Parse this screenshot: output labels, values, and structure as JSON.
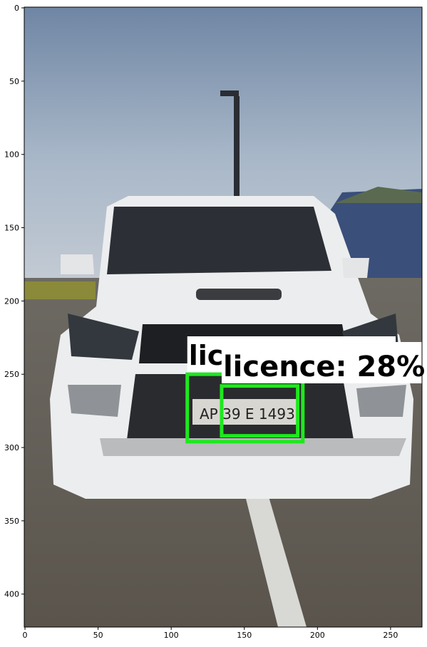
{
  "image": {
    "xlim": [
      -0.5,
      271.5
    ],
    "ylim": [
      422.5,
      -0.5
    ],
    "xticks": [
      0,
      50,
      100,
      150,
      200,
      250
    ],
    "yticks": [
      0,
      50,
      100,
      150,
      200,
      250,
      300,
      350,
      400
    ],
    "detections": [
      {
        "label": "lic"
      },
      {
        "label": "licence: 28%"
      }
    ]
  }
}
